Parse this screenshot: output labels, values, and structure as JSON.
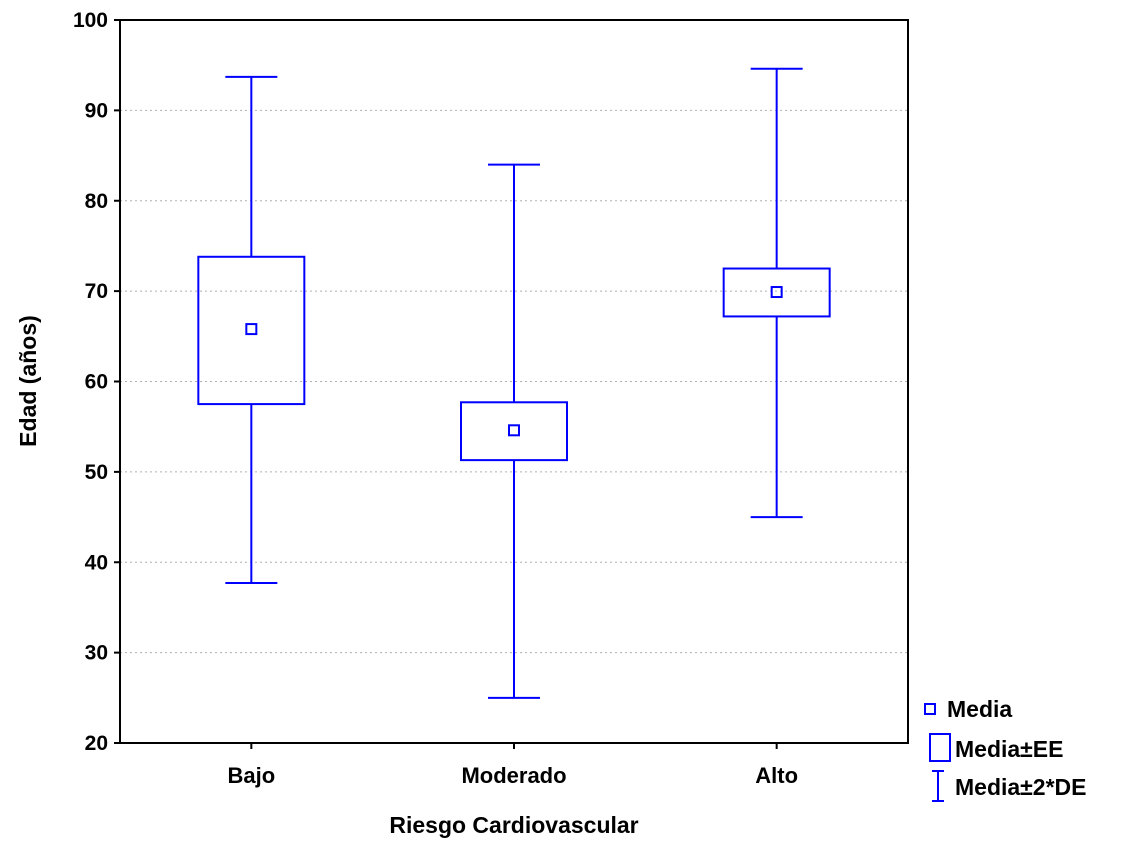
{
  "chart_data": {
    "type": "boxplot",
    "title": "",
    "xlabel": "Riesgo Cardiovascular",
    "ylabel": "Edad (años)",
    "ylim": [
      20,
      100
    ],
    "yticks": [
      20,
      30,
      40,
      50,
      60,
      70,
      80,
      90,
      100
    ],
    "grid": "horizontal-dotted",
    "categories": [
      "Bajo",
      "Moderado",
      "Alto"
    ],
    "series": [
      {
        "mean": [
          65.8,
          54.6,
          69.9
        ],
        "se_low": [
          57.5,
          51.3,
          67.2
        ],
        "se_high": [
          73.8,
          57.7,
          72.5
        ],
        "sd2_low": [
          37.7,
          25.0,
          45.0
        ],
        "sd2_high": [
          93.7,
          84.0,
          94.6
        ]
      }
    ],
    "legend": {
      "position": "bottom-right",
      "items": [
        "Media",
        "Media±EE",
        "Media±2*DE"
      ]
    },
    "colors": {
      "series": "#0000ff",
      "frame": "#000000",
      "grid": "#b0b0b0"
    }
  }
}
